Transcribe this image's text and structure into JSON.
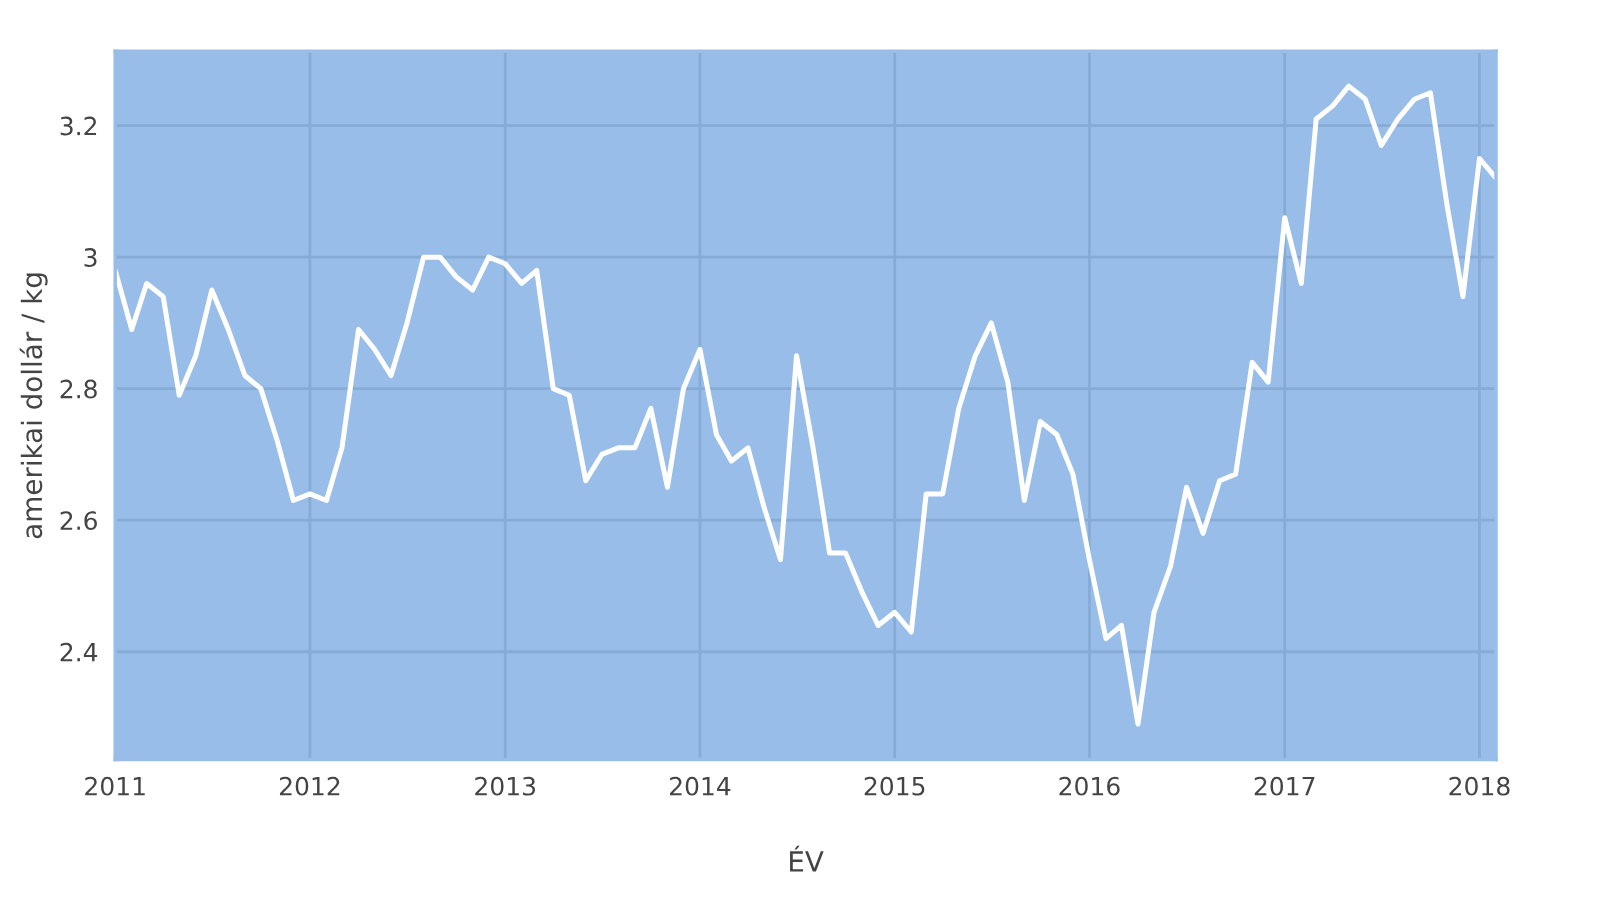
{
  "chart_data": {
    "type": "line",
    "xlabel": "ÉV",
    "ylabel": "amerikai dollár / kg",
    "x": [
      "2011-01",
      "2011-02",
      "2011-03",
      "2011-04",
      "2011-05",
      "2011-06",
      "2011-07",
      "2011-08",
      "2011-09",
      "2011-10",
      "2011-11",
      "2011-12",
      "2012-01",
      "2012-02",
      "2012-03",
      "2012-04",
      "2012-05",
      "2012-06",
      "2012-07",
      "2012-08",
      "2012-09",
      "2012-10",
      "2012-11",
      "2012-12",
      "2013-01",
      "2013-02",
      "2013-03",
      "2013-04",
      "2013-05",
      "2013-06",
      "2013-07",
      "2013-08",
      "2013-09",
      "2013-10",
      "2013-11",
      "2013-12",
      "2014-01",
      "2014-02",
      "2014-03",
      "2014-04",
      "2014-05",
      "2014-06",
      "2014-07",
      "2014-08",
      "2014-09",
      "2014-10",
      "2014-11",
      "2014-12",
      "2015-01",
      "2015-02",
      "2015-03",
      "2015-04",
      "2015-05",
      "2015-06",
      "2015-07",
      "2015-08",
      "2015-09",
      "2015-10",
      "2015-11",
      "2015-12",
      "2016-01",
      "2016-02",
      "2016-03",
      "2016-04",
      "2016-05",
      "2016-06",
      "2016-07",
      "2016-08",
      "2016-09",
      "2016-10",
      "2016-11",
      "2016-12",
      "2017-01",
      "2017-02",
      "2017-03",
      "2017-04",
      "2017-05",
      "2017-06",
      "2017-07",
      "2017-08",
      "2017-09",
      "2017-10",
      "2017-11",
      "2017-12",
      "2018-01",
      "2018-02"
    ],
    "series": [
      {
        "color": "#ffffff",
        "values": [
          2.98,
          2.89,
          2.96,
          2.94,
          2.79,
          2.85,
          2.95,
          2.89,
          2.82,
          2.8,
          2.72,
          2.63,
          2.64,
          2.63,
          2.71,
          2.89,
          2.86,
          2.82,
          2.9,
          3.0,
          3.0,
          2.97,
          2.95,
          3.0,
          2.99,
          2.96,
          2.98,
          2.8,
          2.79,
          2.66,
          2.7,
          2.71,
          2.71,
          2.77,
          2.65,
          2.8,
          2.86,
          2.73,
          2.69,
          2.71,
          2.62,
          2.54,
          2.85,
          2.71,
          2.55,
          2.55,
          2.49,
          2.44,
          2.46,
          2.43,
          2.64,
          2.64,
          2.77,
          2.85,
          2.9,
          2.81,
          2.63,
          2.75,
          2.73,
          2.67,
          2.54,
          2.42,
          2.44,
          2.29,
          2.46,
          2.53,
          2.65,
          2.58,
          2.66,
          2.67,
          2.84,
          2.81,
          3.06,
          2.96,
          3.21,
          3.23,
          3.26,
          3.24,
          3.17,
          3.21,
          3.24,
          3.25,
          3.08,
          2.94,
          3.15,
          3.12
        ]
      }
    ],
    "xlim": [
      "2011-01",
      "2018-02"
    ],
    "xticks": [
      "2011",
      "2012",
      "2013",
      "2014",
      "2015",
      "2016",
      "2017",
      "2018"
    ],
    "ylim": [
      2.236,
      3.313
    ],
    "yticks": [
      2.4,
      2.6,
      2.8,
      3,
      3.2
    ],
    "grid": true,
    "marker": "none",
    "line_style": "solid"
  }
}
